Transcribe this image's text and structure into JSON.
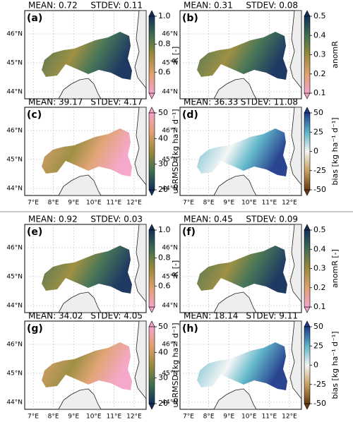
{
  "panels": [
    {
      "letter": "(a)",
      "mean": "MEAN: 0.72",
      "stdev": "STDEV: 0.11",
      "cbar_label": "R [-]",
      "clim": [
        0.45,
        1.0
      ],
      "cbar_ticks": [
        {
          "value": 0.6,
          "label": "0.6"
        },
        {
          "value": 0.8,
          "label": "0.8"
        },
        {
          "value": 1.0,
          "label": "1.0"
        }
      ],
      "colors": [
        "#f5a3c8",
        "#e0a070",
        "#9a8a3a",
        "#3f6f4f",
        "#13305a"
      ],
      "show_lon": false
    },
    {
      "letter": "(b)",
      "mean": "MEAN: 0.31",
      "stdev": "STDEV: 0.08",
      "cbar_label": "anomR",
      "clim": [
        0.1,
        0.5
      ],
      "cbar_ticks": [
        {
          "value": 0.1,
          "label": "0.1"
        },
        {
          "value": 0.2,
          "label": "0.2"
        },
        {
          "value": 0.3,
          "label": "0.3"
        },
        {
          "value": 0.4,
          "label": "0.4"
        },
        {
          "value": 0.5,
          "label": "0.5"
        }
      ],
      "colors": [
        "#f5a3c8",
        "#e0a070",
        "#9a8a3a",
        "#3f6f4f",
        "#13305a"
      ],
      "show_lon": false
    },
    {
      "letter": "(c)",
      "mean": "MEAN: 39.17",
      "stdev": "STDEV: 4.17",
      "cbar_label": "ubRMSD [kg ha⁻¹ d⁻¹]",
      "clim": [
        20,
        50
      ],
      "cbar_ticks": [
        20,
        30,
        40,
        50
      ],
      "colors": [
        "#13305a",
        "#3f6f4f",
        "#9a8a3a",
        "#e0a070",
        "#f5a3c8"
      ],
      "show_lon": true
    },
    {
      "letter": "(d)",
      "mean": "MEAN: 36.33",
      "stdev": "STDEV: 11.08",
      "cbar_label": "bias [kg ha⁻¹ d⁻¹]",
      "clim": [
        -50,
        50
      ],
      "cbar_ticks": [
        -50,
        -25,
        0,
        25,
        50
      ],
      "colors": [
        "#6b3a10",
        "#c8a060",
        "#f5f5f5",
        "#5ab5c8",
        "#1f3a8a"
      ],
      "show_lon": true
    },
    {
      "letter": "(e)",
      "mean": "MEAN: 0.92",
      "stdev": "STDEV: 0.03",
      "cbar_label": "R [-]",
      "clim": [
        0.45,
        1.0
      ],
      "cbar_ticks": [
        {
          "value": 0.6,
          "label": "0.6"
        },
        {
          "value": 0.8,
          "label": "0.8"
        },
        {
          "value": 1.0,
          "label": "1.0"
        }
      ],
      "colors": [
        "#f5a3c8",
        "#e0a070",
        "#9a8a3a",
        "#3f6f4f",
        "#13305a"
      ],
      "show_lon": false
    },
    {
      "letter": "(f)",
      "mean": "MEAN: 0.45",
      "stdev": "STDEV: 0.09",
      "cbar_label": "anomR [-]",
      "clim": [
        0.1,
        0.5
      ],
      "cbar_ticks": [
        {
          "value": 0.1,
          "label": "0.1"
        },
        {
          "value": 0.2,
          "label": "0.2"
        },
        {
          "value": 0.3,
          "label": "0.3"
        },
        {
          "value": 0.4,
          "label": "0.4"
        },
        {
          "value": 0.5,
          "label": "0.5"
        }
      ],
      "colors": [
        "#f5a3c8",
        "#e0a070",
        "#9a8a3a",
        "#3f6f4f",
        "#13305a"
      ],
      "show_lon": false
    },
    {
      "letter": "(g)",
      "mean": "MEAN: 34.02",
      "stdev": "STDEV: 4.05",
      "cbar_label": "ubRMSD [kg ha⁻¹ d⁻¹]",
      "clim": [
        20,
        50
      ],
      "cbar_ticks": [
        20,
        30,
        40,
        50
      ],
      "colors": [
        "#13305a",
        "#3f6f4f",
        "#9a8a3a",
        "#e0a070",
        "#f5a3c8"
      ],
      "show_lon": true
    },
    {
      "letter": "(h)",
      "mean": "MEAN: 18.14",
      "stdev": "STDEV: 9.11",
      "cbar_label": "bias [kg ha⁻¹ d⁻¹]",
      "clim": [
        -50,
        50
      ],
      "cbar_ticks": [
        -50,
        -25,
        0,
        25,
        50
      ],
      "colors": [
        "#6b3a10",
        "#c8a060",
        "#f5f5f5",
        "#5ab5c8",
        "#1f3a8a"
      ],
      "show_lon": true
    }
  ],
  "lat_labels": [
    "46°N",
    "45°N",
    "44°N"
  ],
  "lon_labels": [
    "7°E",
    "8°E",
    "9°E",
    "10°E",
    "11°E",
    "12°E"
  ]
}
